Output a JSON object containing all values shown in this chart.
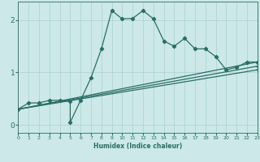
{
  "xlabel": "Humidex (Indice chaleur)",
  "bg_color": "#cce8e8",
  "line_color": "#2a6e65",
  "grid_color": "#aad0d0",
  "xlim": [
    0,
    23
  ],
  "ylim": [
    -0.15,
    2.35
  ],
  "xticks": [
    0,
    1,
    2,
    3,
    4,
    5,
    6,
    7,
    8,
    9,
    10,
    11,
    12,
    13,
    14,
    15,
    16,
    17,
    18,
    19,
    20,
    21,
    22,
    23
  ],
  "yticks": [
    0,
    1,
    2
  ],
  "line1_x": [
    0,
    1,
    2,
    3,
    4,
    5,
    5,
    6,
    7,
    8,
    9,
    10,
    11,
    12,
    13,
    14,
    15,
    16,
    17,
    18,
    19,
    20,
    21,
    22,
    23
  ],
  "line1_y": [
    0.3,
    0.42,
    0.42,
    0.47,
    0.47,
    0.45,
    0.05,
    0.47,
    0.9,
    1.45,
    2.18,
    2.02,
    2.03,
    2.18,
    2.02,
    1.6,
    1.5,
    1.65,
    1.45,
    1.45,
    1.3,
    1.05,
    1.1,
    1.2,
    1.2
  ],
  "line2_x": [
    0,
    23
  ],
  "line2_y": [
    0.3,
    1.2
  ],
  "line3_x": [
    0,
    23
  ],
  "line3_y": [
    0.3,
    1.12
  ],
  "line4_x": [
    0,
    23
  ],
  "line4_y": [
    0.3,
    1.05
  ],
  "marker_size": 2.2,
  "linewidth": 0.9
}
